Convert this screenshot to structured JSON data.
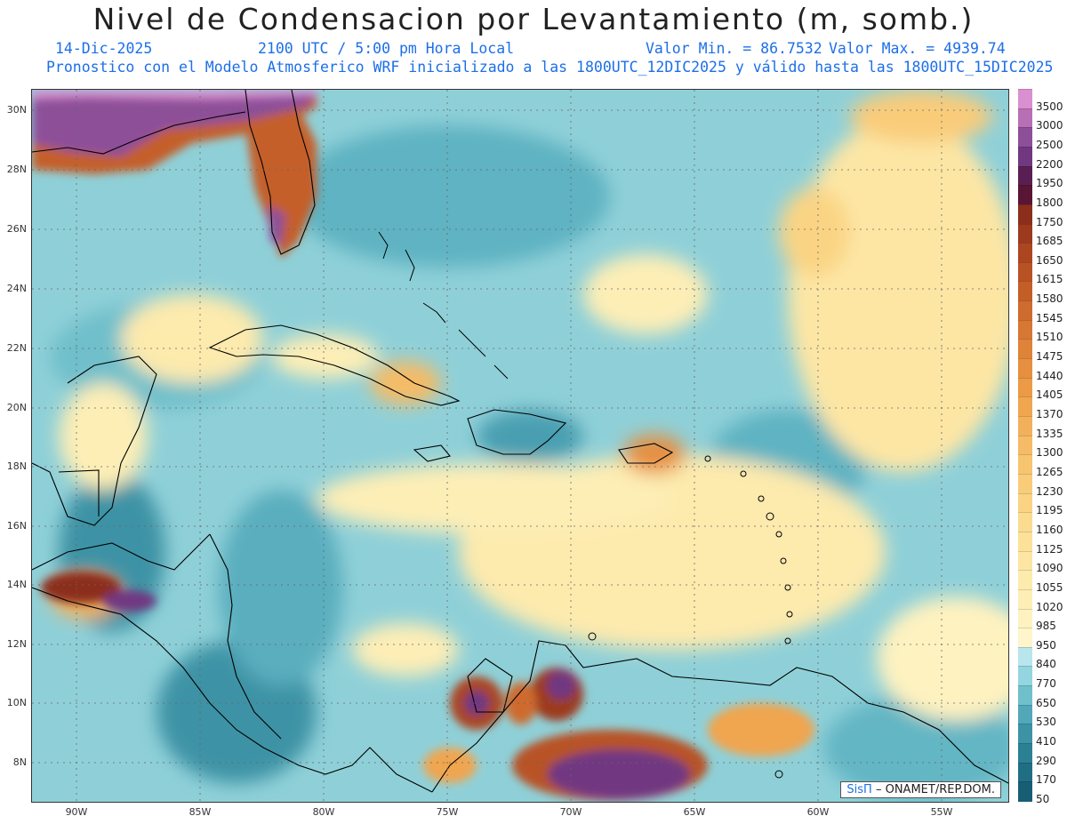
{
  "header": {
    "title": "Nivel de Condensacion por Levantamiento (m, somb.)",
    "date": "14-Dic-2025",
    "time": "2100 UTC / 5:00 pm Hora Local",
    "min_label": "Valor Min. = 86.7532",
    "max_label": "Valor Max. = 4939.74",
    "model_info": "Pronostico con el Modelo Atmosferico WRF inicializado a las 1800UTC_12DIC2025 y válido hasta las  1800UTC_15DIC2025"
  },
  "map": {
    "lat_labels": [
      "30N",
      "28N",
      "26N",
      "24N",
      "22N",
      "20N",
      "18N",
      "16N",
      "14N",
      "12N",
      "10N",
      "8N"
    ],
    "lon_labels": [
      "90W",
      "85W",
      "80W",
      "75W",
      "70W",
      "65W",
      "60W",
      "55W"
    ],
    "credit_logo": "SisΠ",
    "credit_text": "– ONAMET/REP.DOM."
  },
  "colorbar": {
    "levels": [
      "3500",
      "3000",
      "2500",
      "2200",
      "1950",
      "1800",
      "1750",
      "1685",
      "1650",
      "1615",
      "1580",
      "1545",
      "1510",
      "1475",
      "1440",
      "1405",
      "1370",
      "1335",
      "1300",
      "1265",
      "1230",
      "1195",
      "1160",
      "1125",
      "1090",
      "1055",
      "1020",
      "985",
      "950",
      "840",
      "770",
      "650",
      "530",
      "410",
      "290",
      "170",
      "50"
    ],
    "colors": [
      "#d98fd0",
      "#b86fb6",
      "#8e4f99",
      "#713881",
      "#5a1f52",
      "#581634",
      "#8c2e1c",
      "#9d3a1e",
      "#ab4621",
      "#b85225",
      "#c45e29",
      "#ce6b2e",
      "#d77734",
      "#df833a",
      "#e68f40",
      "#ec9a46",
      "#f0a54f",
      "#f3b05a",
      "#f5bb66",
      "#f7c470",
      "#f9cc7a",
      "#fad484",
      "#fbdb8f",
      "#fce19a",
      "#fde6a4",
      "#fdeaad",
      "#fdeeb6",
      "#fef2c0",
      "#fef6ca",
      "#b8e6ec",
      "#94d6df",
      "#70c0cc",
      "#52a8b8",
      "#3c93a5",
      "#2c8094",
      "#206e84",
      "#175e74"
    ]
  }
}
